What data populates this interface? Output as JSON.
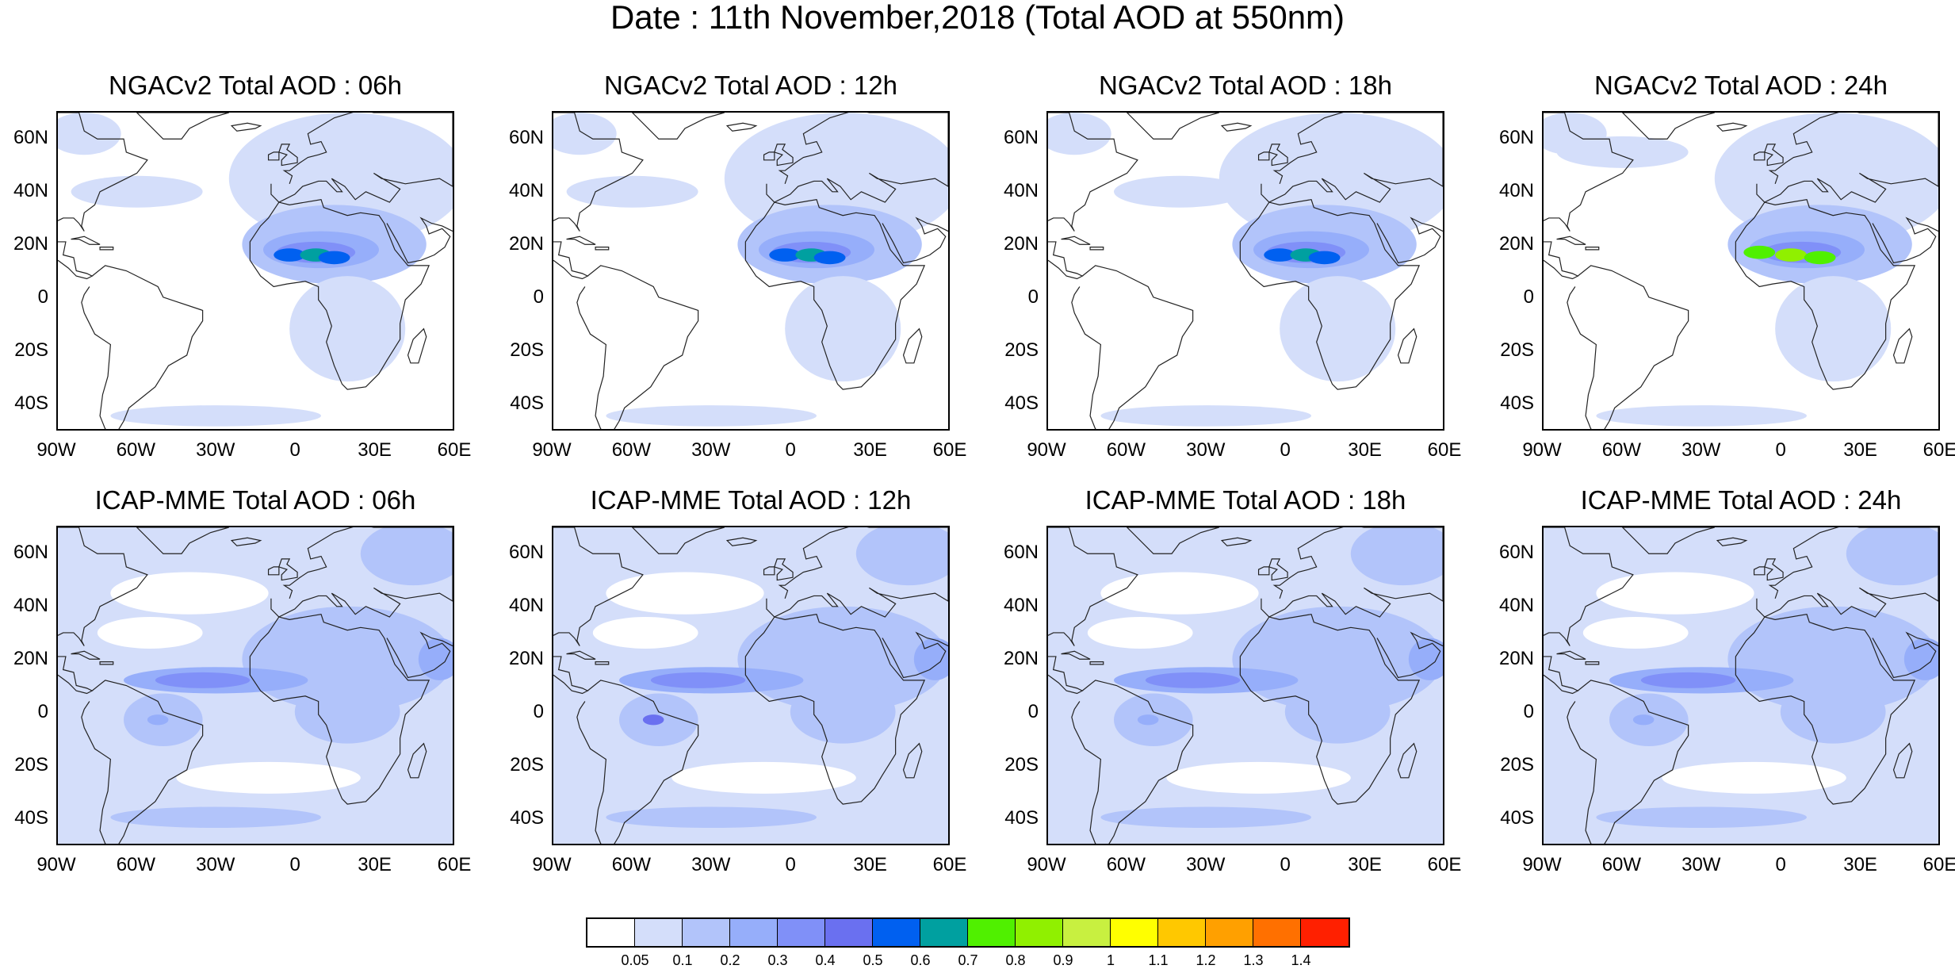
{
  "title": "Date : 11th November,2018 (Total AOD at 550nm)",
  "panels": [
    {
      "title": "NGACv2 Total AOD : 06h"
    },
    {
      "title": "NGACv2 Total AOD : 12h"
    },
    {
      "title": "NGACv2 Total AOD : 18h"
    },
    {
      "title": "NGACv2 Total AOD : 24h"
    },
    {
      "title": "ICAP-MME Total AOD : 06h"
    },
    {
      "title": "ICAP-MME Total AOD : 12h"
    },
    {
      "title": "ICAP-MME Total AOD : 18h"
    },
    {
      "title": "ICAP-MME Total AOD : 24h"
    }
  ],
  "map_extent": {
    "lon_range": [
      -90,
      60
    ],
    "lat_range": [
      -50,
      70
    ]
  },
  "lat_ticks": [
    "60N",
    "40N",
    "20N",
    "0",
    "20S",
    "40S"
  ],
  "lon_ticks": [
    "90W",
    "60W",
    "30W",
    "0",
    "30E",
    "60E"
  ],
  "colorbar": {
    "labels": [
      "0.05",
      "0.1",
      "0.2",
      "0.3",
      "0.4",
      "0.5",
      "0.6",
      "0.7",
      "0.8",
      "0.9",
      "1",
      "1.1",
      "1.2",
      "1.3",
      "1.4"
    ],
    "colors": [
      "#ffffff",
      "#d4defa",
      "#b2c4fa",
      "#96aefa",
      "#8090f8",
      "#6a70f0",
      "#0060f0",
      "#00a0a0",
      "#50f000",
      "#90f000",
      "#c8f040",
      "#ffff00",
      "#ffc800",
      "#ffa000",
      "#ff7000",
      "#ff2000"
    ]
  }
}
